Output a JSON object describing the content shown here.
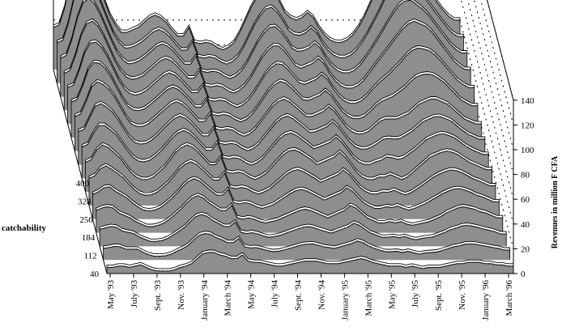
{
  "chart_data": {
    "type": "area",
    "subtype": "3d-stacked-ribbons",
    "title": "",
    "ylabel": "Revenues in million F CFA",
    "zlabel": "catchability",
    "x_tick_labels": [
      "May '93",
      "July '93",
      "Sept. '93",
      "Nov. '93",
      "January '94",
      "March '94",
      "May '94",
      "July '94",
      "Sept. '94",
      "Nov. '94",
      "January '95",
      "March '95",
      "May '95",
      "July '95",
      "Sept. '95",
      "Nov. '95",
      "January '96",
      "March '96"
    ],
    "y_ticks": [
      0,
      20,
      40,
      60,
      80,
      100,
      120,
      140
    ],
    "ylim": [
      0,
      140
    ],
    "z_ticks": [
      40,
      112,
      184,
      256,
      328,
      400
    ],
    "grid": "dotted back-wall lines at each y tick",
    "colors": {
      "ribbon_front": "#8e8e8e",
      "ribbon_back": "#ffffff",
      "edge": "#000000"
    },
    "series": [
      {
        "catchability": 40,
        "values": [
          5,
          5,
          6,
          6,
          5,
          6,
          7,
          5,
          3,
          2,
          2,
          2,
          3,
          5,
          6,
          8,
          12,
          16,
          17,
          17,
          15,
          14,
          12,
          12,
          15,
          10,
          9,
          9,
          8,
          7,
          6,
          6,
          7,
          8,
          9,
          10,
          10,
          10,
          9,
          8,
          8,
          8,
          9,
          10,
          11,
          12,
          11,
          9,
          8,
          7,
          6,
          6,
          6,
          5,
          6,
          5,
          4,
          5,
          5,
          5,
          6,
          7,
          8,
          8,
          9,
          9,
          9,
          8,
          8,
          7,
          7,
          6,
          6
        ]
      },
      {
        "catchability": 112,
        "values": [
          18,
          20,
          21,
          20,
          16,
          14,
          12,
          9,
          7,
          5,
          5,
          6,
          8,
          11,
          15,
          19,
          24,
          28,
          30,
          28,
          24,
          21,
          18,
          18,
          22,
          12,
          11,
          12,
          11,
          9,
          8,
          9,
          10,
          12,
          14,
          16,
          18,
          19,
          18,
          16,
          14,
          12,
          14,
          16,
          18,
          22,
          20,
          16,
          12,
          10,
          8,
          8,
          9,
          8,
          9,
          7,
          6,
          7,
          8,
          9,
          11,
          13,
          16,
          18,
          20,
          21,
          20,
          19,
          17,
          16,
          14,
          12,
          12
        ]
      },
      {
        "catchability": 184,
        "values": [
          24,
          26,
          34,
          38,
          36,
          32,
          28,
          22,
          16,
          12,
          10,
          10,
          12,
          16,
          20,
          26,
          32,
          36,
          38,
          36,
          32,
          27,
          22,
          22,
          28,
          16,
          15,
          16,
          15,
          12,
          10,
          12,
          15,
          20,
          25,
          30,
          33,
          34,
          32,
          29,
          26,
          22,
          24,
          26,
          28,
          32,
          28,
          22,
          16,
          12,
          10,
          10,
          12,
          12,
          14,
          12,
          10,
          12,
          16,
          20,
          24,
          28,
          30,
          32,
          33,
          32,
          30,
          27,
          24,
          22,
          20,
          18,
          18
        ]
      },
      {
        "catchability": 256,
        "values": [
          28,
          30,
          40,
          52,
          56,
          54,
          50,
          44,
          36,
          28,
          22,
          20,
          20,
          22,
          26,
          30,
          34,
          38,
          40,
          38,
          34,
          29,
          24,
          24,
          30,
          18,
          17,
          18,
          17,
          14,
          12,
          14,
          18,
          24,
          30,
          36,
          40,
          42,
          40,
          36,
          32,
          28,
          28,
          30,
          32,
          36,
          32,
          26,
          20,
          16,
          14,
          14,
          16,
          20,
          24,
          26,
          26,
          26,
          28,
          30,
          34,
          38,
          40,
          42,
          42,
          40,
          38,
          34,
          30,
          26,
          24,
          22,
          22
        ]
      },
      {
        "catchability": 328,
        "values": [
          30,
          32,
          44,
          60,
          70,
          72,
          68,
          60,
          50,
          40,
          32,
          27,
          25,
          26,
          28,
          32,
          36,
          40,
          42,
          40,
          36,
          31,
          26,
          26,
          32,
          20,
          19,
          20,
          19,
          16,
          14,
          16,
          20,
          26,
          34,
          42,
          48,
          52,
          52,
          48,
          42,
          36,
          34,
          36,
          38,
          42,
          38,
          30,
          24,
          20,
          18,
          18,
          20,
          24,
          30,
          36,
          42,
          48,
          54,
          60,
          66,
          70,
          72,
          70,
          68,
          64,
          58,
          52,
          46,
          40,
          36,
          33,
          33
        ]
      },
      {
        "catchability": 400,
        "values": [
          34,
          36,
          50,
          72,
          88,
          94,
          90,
          80,
          68,
          56,
          44,
          36,
          30,
          30,
          32,
          34,
          38,
          42,
          44,
          42,
          38,
          32,
          27,
          27,
          34,
          22,
          21,
          22,
          21,
          18,
          16,
          18,
          22,
          30,
          40,
          50,
          58,
          64,
          66,
          62,
          55,
          46,
          42,
          40,
          42,
          46,
          42,
          34,
          28,
          24,
          22,
          22,
          24,
          28,
          34,
          42,
          52,
          62,
          74,
          84,
          90,
          92,
          90,
          84,
          78,
          72,
          66,
          60,
          54,
          48,
          43,
          40,
          40
        ]
      }
    ]
  }
}
